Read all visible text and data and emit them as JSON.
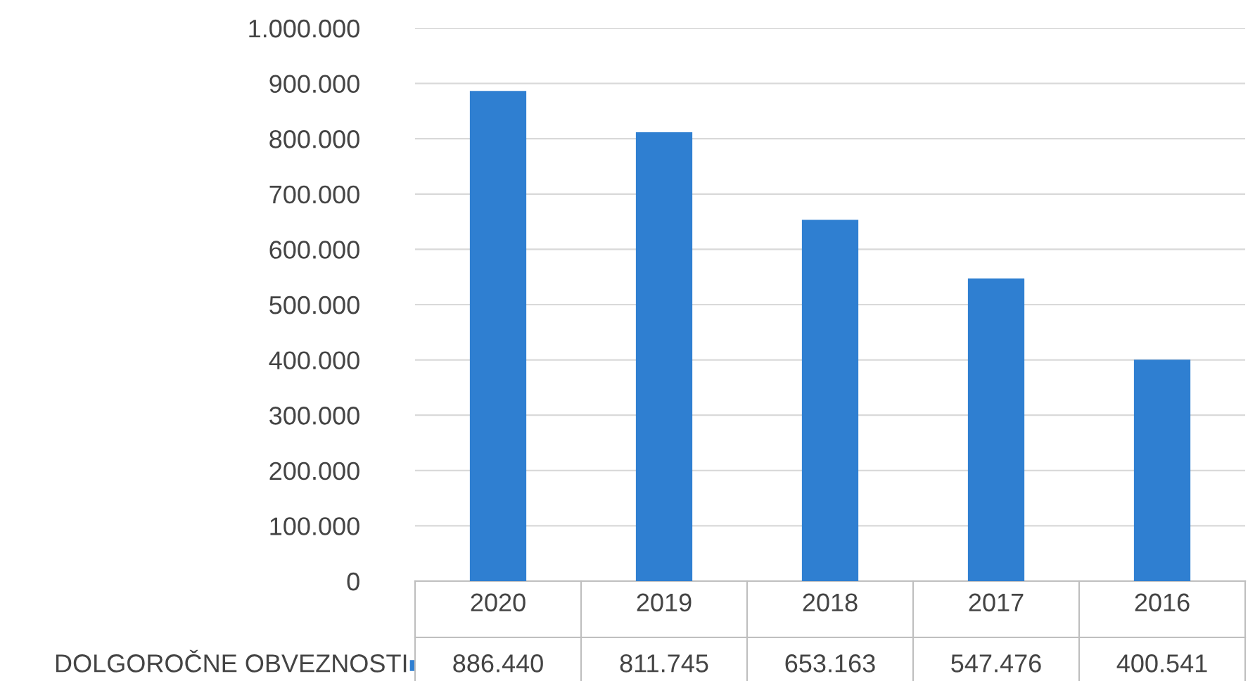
{
  "chart_data": {
    "type": "bar",
    "categories": [
      "2020",
      "2019",
      "2018",
      "2017",
      "2016"
    ],
    "series": [
      {
        "name": "DOLGOROČNE OBVEZNOSTI",
        "color": "#2f7fd1",
        "values": [
          886440,
          811745,
          653163,
          547476,
          400541
        ],
        "value_labels": [
          "886.440",
          "811.745",
          "653.163",
          "547.476",
          "400.541"
        ]
      }
    ],
    "ylim": [
      0,
      1000000
    ],
    "yticks": [
      0,
      {
        "value": 100000,
        "label": "100.000"
      },
      {
        "value": 200000,
        "label": "200.000"
      },
      {
        "value": 300000,
        "label": "300.000"
      },
      {
        "value": 400000,
        "label": "400.000"
      },
      {
        "value": 500000,
        "label": "500.000"
      },
      {
        "value": 600000,
        "label": "600.000"
      },
      {
        "value": 700000,
        "label": "700.000"
      },
      {
        "value": 800000,
        "label": "800.000"
      },
      {
        "value": 900000,
        "label": "900.000"
      },
      {
        "value": 1000000,
        "label": "1.000.000"
      }
    ],
    "grid": "y"
  }
}
